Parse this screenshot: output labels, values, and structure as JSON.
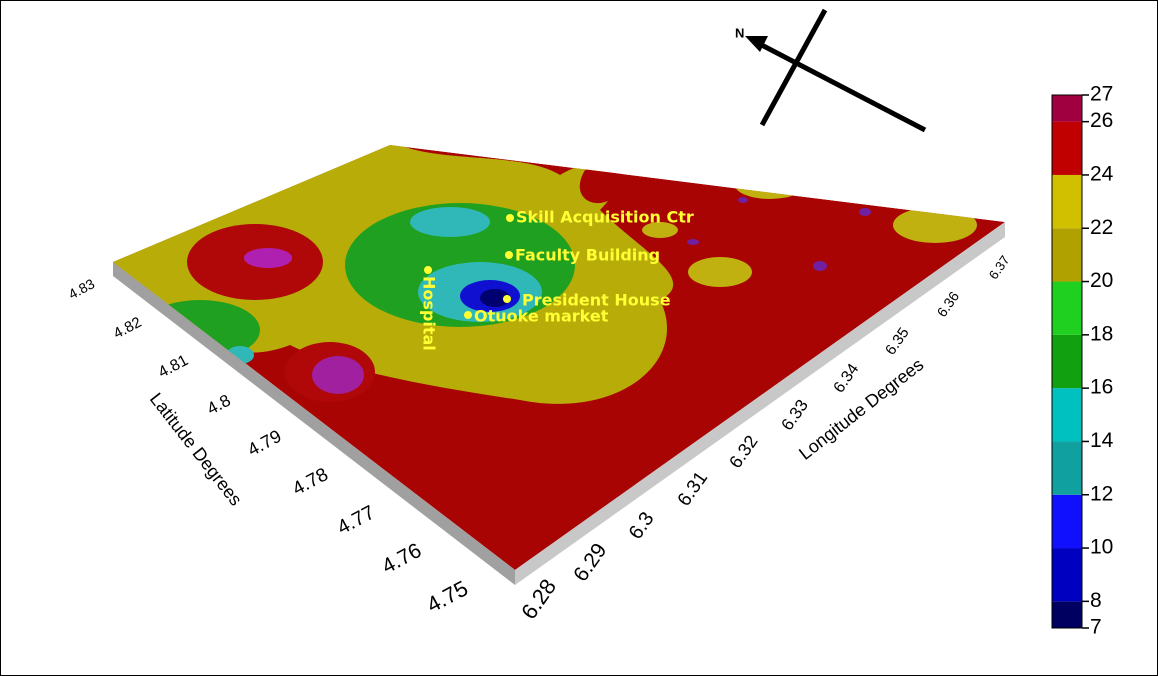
{
  "map": {
    "compass": "N",
    "places": [
      "Skill Acquisition Ctr",
      "Faculty Building",
      "President House",
      "Otuoke market",
      "Hospital"
    ],
    "latitude": {
      "label": "Latitude Degrees",
      "lim": [
        4.75,
        4.83
      ],
      "ticks": [
        4.75,
        4.76,
        4.77,
        4.78,
        4.79,
        4.8,
        4.81,
        4.82,
        4.83
      ]
    },
    "longitude": {
      "label": "Longitude Degrees",
      "lim": [
        6.28,
        6.37
      ],
      "ticks": [
        6.28,
        6.29,
        6.3,
        6.31,
        6.32,
        6.33,
        6.34,
        6.35,
        6.36,
        6.37
      ]
    },
    "colorbar": {
      "lim": [
        7,
        27
      ],
      "ticks": [
        7,
        8,
        10,
        12,
        14,
        16,
        18,
        20,
        22,
        24,
        26,
        27
      ],
      "colors": [
        "#000060",
        "#0000c0",
        "#1010ff",
        "#10a0a0",
        "#00c0c0",
        "#10a010",
        "#20d020",
        "#b0a000",
        "#d0c000",
        "#c00000",
        "#a00040",
        "#d000d0"
      ]
    }
  }
}
